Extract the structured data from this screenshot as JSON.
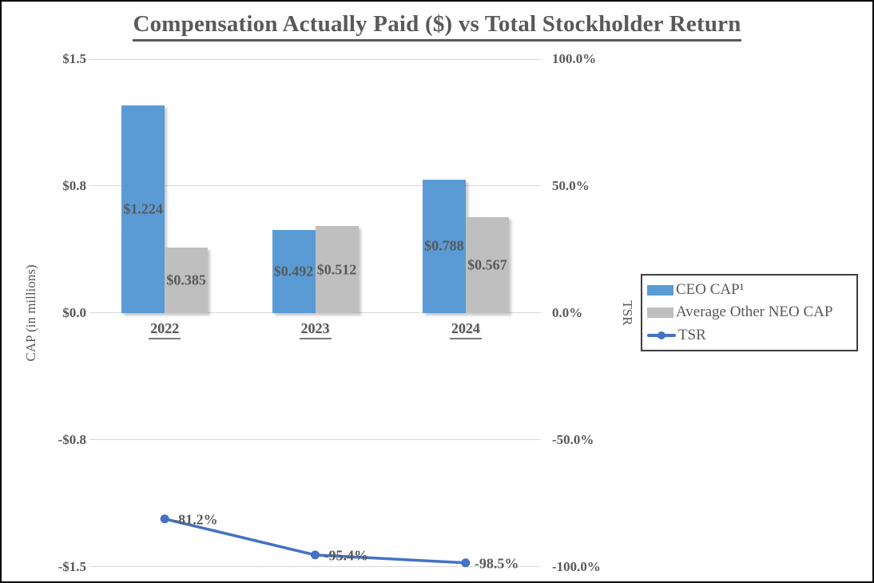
{
  "chart_data": {
    "type": "bar",
    "subtype": "combo-bar-line-dual-axis",
    "title": "Compensation Actually Paid ($) vs Total Stockholder Return",
    "categories": [
      "2022",
      "2023",
      "2024"
    ],
    "series": [
      {
        "name": "CEO CAP¹",
        "type": "bar",
        "axis": "left",
        "color": "#5B9BD5",
        "values": [
          1.224,
          0.492,
          0.788
        ],
        "labels": [
          "$1.224",
          "$0.492",
          "$0.788"
        ]
      },
      {
        "name": "Average Other NEO CAP",
        "type": "bar",
        "axis": "left",
        "color": "#BFBFBF",
        "values": [
          0.385,
          0.512,
          0.567
        ],
        "labels": [
          "$0.385",
          "$0.512",
          "$0.567"
        ]
      },
      {
        "name": "TSR",
        "type": "line",
        "axis": "right",
        "color": "#4472C4",
        "values": [
          -81.2,
          -95.4,
          -98.5
        ],
        "labels": [
          "-81.2%",
          "-95.4%",
          "-98.5%"
        ]
      }
    ],
    "left_axis": {
      "label": "CAP (in millions)",
      "ticks": [
        "$1.5",
        "$0.8",
        "$0.0",
        "-$0.8",
        "-$1.5"
      ],
      "tick_values": [
        1.5,
        0.75,
        0,
        -0.75,
        -1.5
      ],
      "ylim": [
        -1.5,
        1.5
      ]
    },
    "right_axis": {
      "label": "TSR",
      "ticks": [
        "100.0%",
        "50.0%",
        "0.0%",
        "-50.0%",
        "-100.0%"
      ],
      "tick_values": [
        100,
        50,
        0,
        -50,
        -100
      ],
      "ylim": [
        -100,
        100
      ]
    },
    "grid": true,
    "legend_position": "right"
  }
}
